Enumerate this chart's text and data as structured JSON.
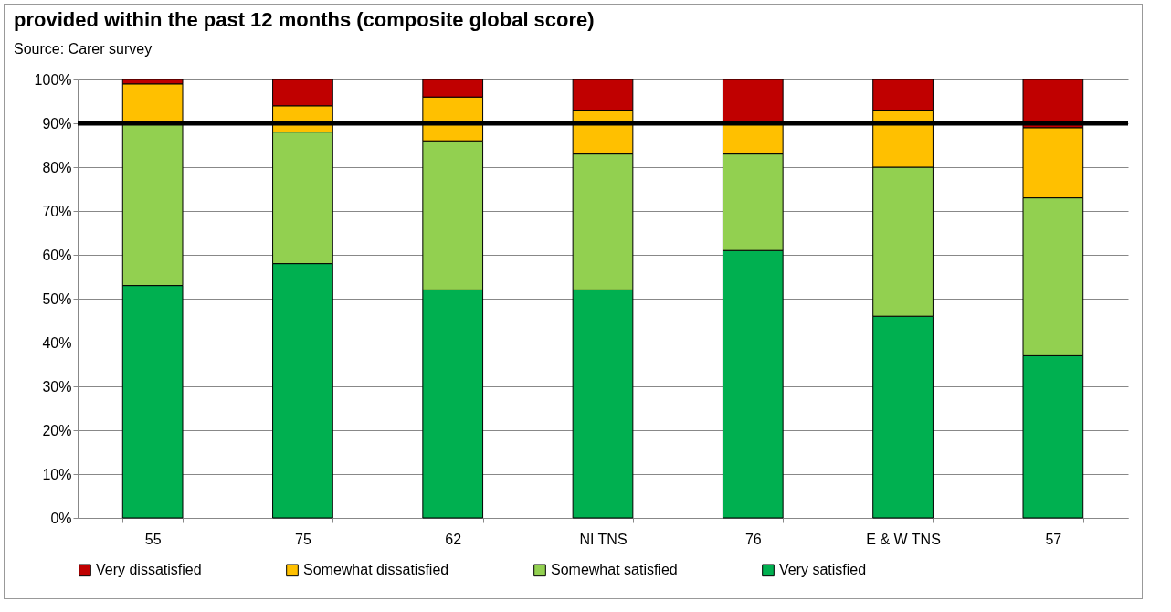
{
  "chart_data": {
    "type": "bar",
    "stacked": true,
    "title": "provided within the past 12 months (composite global score)",
    "annotations": [
      "Source: Carer survey"
    ],
    "categories": [
      "55",
      "75",
      "62",
      "NI TNS",
      "76",
      "E & W TNS",
      "57"
    ],
    "series": [
      {
        "name": "Very satisfied",
        "color": "#00b050",
        "values": [
          53,
          58,
          52,
          52,
          61,
          46,
          37
        ]
      },
      {
        "name": "Somewhat satisfied",
        "color": "#92d050",
        "values": [
          37,
          30,
          34,
          31,
          22,
          34,
          36
        ]
      },
      {
        "name": "Somewhat dissatisfied",
        "color": "#ffc000",
        "values": [
          9,
          6,
          10,
          10,
          7,
          13,
          16
        ]
      },
      {
        "name": "Very dissatisfied",
        "color": "#c00000",
        "values": [
          1,
          6,
          4,
          7,
          10,
          7,
          11
        ]
      }
    ],
    "ylim": [
      0,
      100
    ],
    "yticks": [
      {
        "value": 0,
        "label": "0%"
      },
      {
        "value": 10,
        "label": "10%"
      },
      {
        "value": 20,
        "label": "20%"
      },
      {
        "value": 30,
        "label": "30%"
      },
      {
        "value": 40,
        "label": "40%"
      },
      {
        "value": 50,
        "label": "50%"
      },
      {
        "value": 60,
        "label": "60%"
      },
      {
        "value": 70,
        "label": "70%"
      },
      {
        "value": 80,
        "label": "80%"
      },
      {
        "value": 90,
        "label": "90%"
      },
      {
        "value": 100,
        "label": "100%"
      }
    ],
    "ref_lines": [
      {
        "axis": "y",
        "value": 90,
        "color": "#000000"
      }
    ],
    "grid": "y",
    "legend": "bottom"
  }
}
